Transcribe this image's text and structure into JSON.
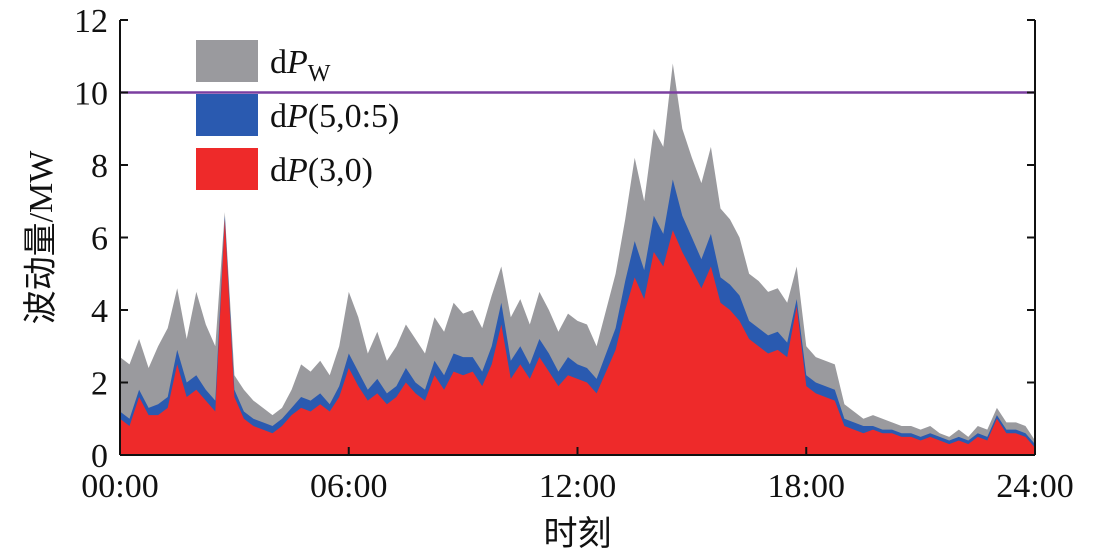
{
  "chart_data": {
    "type": "area",
    "title": "",
    "xlabel": "时刻",
    "ylabel": "波动量/MW",
    "xlim": [
      0,
      24
    ],
    "ylim": [
      0,
      12
    ],
    "x_ticks": [
      "00:00",
      "06:00",
      "12:00",
      "18:00",
      "24:00"
    ],
    "y_ticks": [
      "0",
      "2",
      "4",
      "6",
      "8",
      "10",
      "12"
    ],
    "grid": false,
    "legend_position": "top-left",
    "reference_line": {
      "y": 10,
      "color": "#7b3fa0"
    },
    "x": [
      0,
      0.25,
      0.5,
      0.75,
      1,
      1.25,
      1.5,
      1.75,
      2,
      2.25,
      2.5,
      2.75,
      3,
      3.25,
      3.5,
      3.75,
      4,
      4.25,
      4.5,
      4.75,
      5,
      5.25,
      5.5,
      5.75,
      6,
      6.25,
      6.5,
      6.75,
      7,
      7.25,
      7.5,
      7.75,
      8,
      8.25,
      8.5,
      8.75,
      9,
      9.25,
      9.5,
      9.75,
      10,
      10.25,
      10.5,
      10.75,
      11,
      11.25,
      11.5,
      11.75,
      12,
      12.25,
      12.5,
      12.75,
      13,
      13.25,
      13.5,
      13.75,
      14,
      14.25,
      14.5,
      14.75,
      15,
      15.25,
      15.5,
      15.75,
      16,
      16.25,
      16.5,
      16.75,
      17,
      17.25,
      17.5,
      17.75,
      18,
      18.25,
      18.5,
      18.75,
      19,
      19.25,
      19.5,
      19.75,
      20,
      20.25,
      20.5,
      20.75,
      21,
      21.25,
      21.5,
      21.75,
      22,
      22.25,
      22.5,
      22.75,
      23,
      23.25,
      23.5,
      23.75,
      24
    ],
    "series": [
      {
        "name": "dPw",
        "label_main": "dP",
        "label_sub": "W",
        "color": "#9a9a9e",
        "values": [
          2.7,
          2.5,
          3.2,
          2.4,
          3.0,
          3.5,
          4.6,
          3.2,
          4.5,
          3.6,
          3.0,
          6.7,
          2.2,
          1.8,
          1.5,
          1.3,
          1.1,
          1.3,
          1.8,
          2.5,
          2.3,
          2.6,
          2.2,
          3.0,
          4.5,
          3.8,
          2.8,
          3.4,
          2.6,
          3.0,
          3.6,
          3.2,
          2.8,
          3.8,
          3.4,
          4.2,
          3.9,
          4.0,
          3.5,
          4.4,
          5.2,
          3.8,
          4.3,
          3.6,
          4.5,
          4.0,
          3.4,
          3.9,
          3.7,
          3.6,
          3.0,
          4.0,
          5.0,
          6.5,
          8.2,
          7.0,
          9.0,
          8.5,
          10.8,
          9.0,
          8.2,
          7.5,
          8.5,
          6.8,
          6.5,
          6.0,
          5.0,
          4.8,
          4.5,
          4.6,
          4.2,
          5.2,
          3.0,
          2.7,
          2.6,
          2.5,
          1.4,
          1.2,
          1.0,
          1.1,
          1.0,
          0.9,
          0.8,
          0.8,
          0.7,
          0.8,
          0.6,
          0.5,
          0.7,
          0.5,
          0.8,
          0.7,
          1.3,
          0.9,
          0.9,
          0.8,
          0.4
        ]
      },
      {
        "name": "dP(5,0:5)",
        "label_main": "dP",
        "label_sub": "(5,0:5)",
        "color": "#2a5ab0",
        "values": [
          1.2,
          1.0,
          1.8,
          1.3,
          1.4,
          1.6,
          2.9,
          2.0,
          2.2,
          1.8,
          1.5,
          6.6,
          1.8,
          1.2,
          1.0,
          0.9,
          0.8,
          1.0,
          1.3,
          1.6,
          1.5,
          1.7,
          1.4,
          1.9,
          2.8,
          2.3,
          1.8,
          2.1,
          1.7,
          1.9,
          2.4,
          2.0,
          1.8,
          2.6,
          2.2,
          2.8,
          2.7,
          2.7,
          2.3,
          3.0,
          4.2,
          2.6,
          3.0,
          2.5,
          3.2,
          2.8,
          2.3,
          2.7,
          2.5,
          2.4,
          2.1,
          2.8,
          3.5,
          4.8,
          5.9,
          5.1,
          6.6,
          6.1,
          7.6,
          6.6,
          6.0,
          5.4,
          6.1,
          4.9,
          4.7,
          4.4,
          3.7,
          3.5,
          3.3,
          3.4,
          3.1,
          4.3,
          2.2,
          2.0,
          1.9,
          1.8,
          1.0,
          0.9,
          0.8,
          0.8,
          0.7,
          0.7,
          0.6,
          0.6,
          0.5,
          0.6,
          0.5,
          0.4,
          0.5,
          0.4,
          0.6,
          0.5,
          1.1,
          0.7,
          0.7,
          0.6,
          0.3
        ]
      },
      {
        "name": "dP(3,0)",
        "label_main": "dP",
        "label_sub": "(3,0)",
        "color": "#ee2a2a",
        "values": [
          1.0,
          0.8,
          1.6,
          1.1,
          1.1,
          1.3,
          2.5,
          1.6,
          1.8,
          1.5,
          1.2,
          6.5,
          1.6,
          1.0,
          0.8,
          0.7,
          0.6,
          0.8,
          1.1,
          1.3,
          1.2,
          1.4,
          1.2,
          1.6,
          2.4,
          1.9,
          1.5,
          1.7,
          1.4,
          1.6,
          2.0,
          1.7,
          1.5,
          2.2,
          1.8,
          2.3,
          2.2,
          2.3,
          1.9,
          2.5,
          3.6,
          2.1,
          2.5,
          2.1,
          2.7,
          2.3,
          1.9,
          2.2,
          2.1,
          2.0,
          1.7,
          2.3,
          2.9,
          4.0,
          4.9,
          4.3,
          5.6,
          5.2,
          6.2,
          5.6,
          5.1,
          4.6,
          5.2,
          4.2,
          4.0,
          3.7,
          3.2,
          3.0,
          2.8,
          2.9,
          2.7,
          4.1,
          1.9,
          1.7,
          1.6,
          1.5,
          0.8,
          0.7,
          0.6,
          0.7,
          0.6,
          0.6,
          0.5,
          0.5,
          0.4,
          0.5,
          0.4,
          0.3,
          0.4,
          0.3,
          0.5,
          0.4,
          1.0,
          0.6,
          0.6,
          0.5,
          0.2
        ]
      }
    ]
  }
}
